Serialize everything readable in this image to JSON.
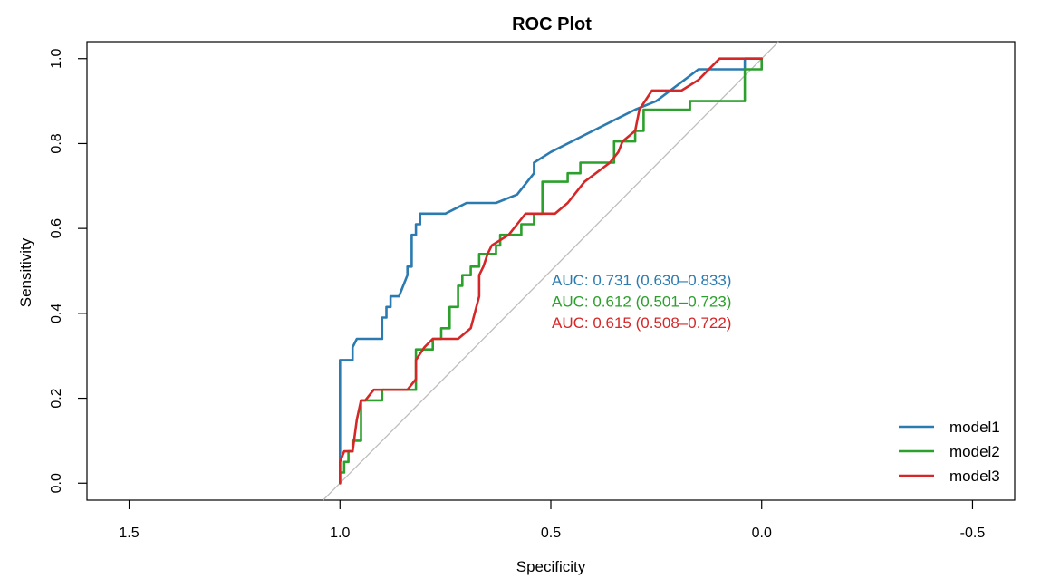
{
  "chart_data": {
    "type": "line",
    "title": "ROC Plot",
    "xlabel": "Specificity",
    "ylabel": "Sensitivity",
    "xlim": [
      1.6,
      -0.6
    ],
    "ylim": [
      -0.04,
      1.04
    ],
    "x_ticks": [
      1.5,
      1.0,
      0.5,
      0.0,
      -0.5
    ],
    "x_tick_labels": [
      "1.5",
      "1.0",
      "0.5",
      "0.0",
      "-0.5"
    ],
    "y_ticks": [
      0.0,
      0.2,
      0.4,
      0.6,
      0.8,
      1.0
    ],
    "y_tick_labels": [
      "0.0",
      "0.2",
      "0.4",
      "0.6",
      "0.8",
      "1.0"
    ],
    "grid": false,
    "reference_line": {
      "from": [
        1.0,
        0.0
      ],
      "to": [
        0.0,
        1.0
      ],
      "color": "#bebebe"
    },
    "legend_position": "bottom-right",
    "series": [
      {
        "name": "model1",
        "color": "#2b7bb0",
        "auc_label": "AUC: 0.731 (0.630–0.833)",
        "x": [
          1.0,
          1.0,
          0.97,
          0.97,
          0.96,
          0.96,
          0.9,
          0.9,
          0.89,
          0.89,
          0.88,
          0.88,
          0.86,
          0.84,
          0.84,
          0.83,
          0.83,
          0.82,
          0.82,
          0.81,
          0.81,
          0.75,
          0.7,
          0.63,
          0.58,
          0.54,
          0.54,
          0.5,
          0.4,
          0.3,
          0.25,
          0.15,
          0.04,
          0.04,
          0.0
        ],
        "y": [
          0.0,
          0.29,
          0.29,
          0.32,
          0.34,
          0.34,
          0.34,
          0.39,
          0.39,
          0.415,
          0.415,
          0.44,
          0.44,
          0.49,
          0.51,
          0.51,
          0.585,
          0.585,
          0.61,
          0.61,
          0.635,
          0.635,
          0.66,
          0.66,
          0.68,
          0.73,
          0.755,
          0.78,
          0.83,
          0.88,
          0.9,
          0.975,
          0.975,
          1.0,
          1.0
        ]
      },
      {
        "name": "model2",
        "color": "#2ca02c",
        "auc_label": "AUC: 0.612 (0.501–0.723)",
        "x": [
          1.0,
          1.0,
          0.99,
          0.99,
          0.98,
          0.98,
          0.97,
          0.97,
          0.95,
          0.95,
          0.94,
          0.94,
          0.9,
          0.9,
          0.87,
          0.87,
          0.82,
          0.82,
          0.78,
          0.78,
          0.76,
          0.76,
          0.74,
          0.74,
          0.72,
          0.72,
          0.71,
          0.71,
          0.69,
          0.69,
          0.67,
          0.67,
          0.63,
          0.63,
          0.62,
          0.62,
          0.57,
          0.57,
          0.54,
          0.54,
          0.52,
          0.52,
          0.46,
          0.46,
          0.43,
          0.43,
          0.4,
          0.4,
          0.35,
          0.35,
          0.3,
          0.3,
          0.28,
          0.28,
          0.25,
          0.25,
          0.17,
          0.17,
          0.04,
          0.04,
          0.0,
          0.0
        ],
        "y": [
          0.0,
          0.025,
          0.025,
          0.05,
          0.05,
          0.075,
          0.075,
          0.1,
          0.1,
          0.195,
          0.195,
          0.195,
          0.195,
          0.22,
          0.22,
          0.22,
          0.22,
          0.315,
          0.315,
          0.34,
          0.34,
          0.365,
          0.365,
          0.415,
          0.415,
          0.465,
          0.465,
          0.49,
          0.49,
          0.51,
          0.51,
          0.54,
          0.54,
          0.56,
          0.56,
          0.585,
          0.585,
          0.61,
          0.61,
          0.635,
          0.635,
          0.71,
          0.71,
          0.73,
          0.73,
          0.755,
          0.755,
          0.755,
          0.755,
          0.805,
          0.805,
          0.83,
          0.83,
          0.88,
          0.88,
          0.88,
          0.88,
          0.9,
          0.9,
          0.975,
          0.975,
          1.0
        ]
      },
      {
        "name": "model3",
        "color": "#d62728",
        "auc_label": "AUC: 0.615 (0.508–0.722)",
        "x": [
          1.0,
          1.0,
          0.99,
          0.97,
          0.96,
          0.95,
          0.94,
          0.92,
          0.9,
          0.88,
          0.84,
          0.82,
          0.82,
          0.8,
          0.78,
          0.76,
          0.72,
          0.69,
          0.67,
          0.67,
          0.66,
          0.65,
          0.64,
          0.6,
          0.58,
          0.56,
          0.49,
          0.46,
          0.42,
          0.36,
          0.34,
          0.33,
          0.3,
          0.29,
          0.26,
          0.19,
          0.15,
          0.1,
          0.0
        ],
        "y": [
          0.0,
          0.05,
          0.075,
          0.075,
          0.15,
          0.195,
          0.195,
          0.22,
          0.22,
          0.22,
          0.22,
          0.245,
          0.29,
          0.32,
          0.34,
          0.34,
          0.34,
          0.365,
          0.44,
          0.49,
          0.51,
          0.54,
          0.56,
          0.585,
          0.61,
          0.635,
          0.635,
          0.66,
          0.71,
          0.755,
          0.78,
          0.805,
          0.83,
          0.88,
          0.925,
          0.925,
          0.95,
          1.0,
          1.0
        ]
      }
    ]
  }
}
